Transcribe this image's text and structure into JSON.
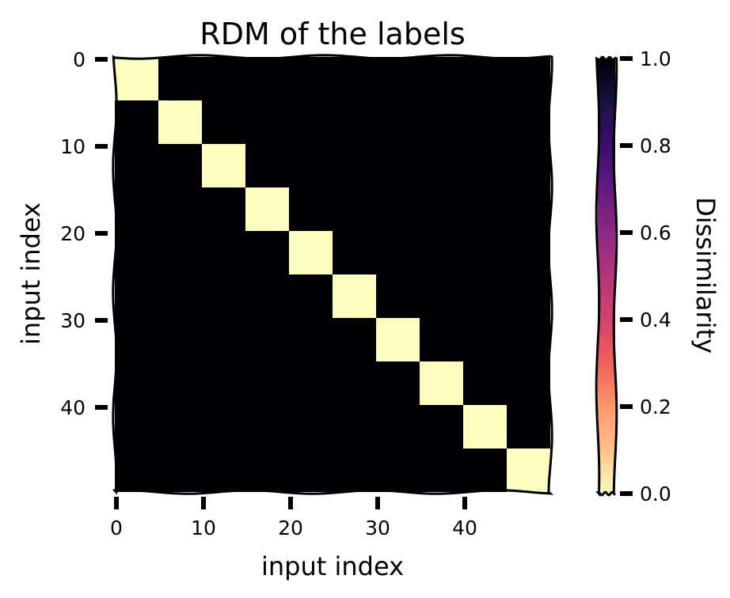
{
  "chart_data": {
    "type": "heatmap",
    "title": "RDM of the labels",
    "xlabel": "input index",
    "ylabel": "input index",
    "size": 50,
    "block_size": 5,
    "matrix_rule": "value is 0.0 when row and column are in the same block of 5 inputs, otherwise 1.0",
    "x_ticks": [
      0,
      10,
      20,
      30,
      40
    ],
    "y_ticks": [
      0,
      10,
      20,
      30,
      40
    ],
    "colormap": "magma",
    "colors": {
      "low": "#fcfdbf",
      "high": "#000004"
    },
    "colorbar": {
      "label": "Dissimilarity",
      "range": [
        0.0,
        1.0
      ],
      "ticks": [
        "0.0",
        "0.2",
        "0.4",
        "0.6",
        "0.8",
        "1.0"
      ]
    }
  }
}
